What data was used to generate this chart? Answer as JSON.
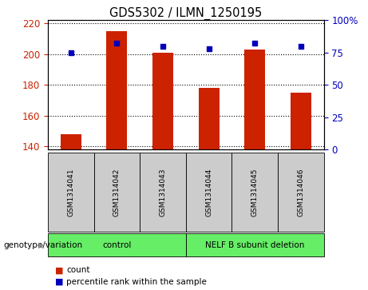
{
  "title": "GDS5302 / ILMN_1250195",
  "samples": [
    "GSM1314041",
    "GSM1314042",
    "GSM1314043",
    "GSM1314044",
    "GSM1314045",
    "GSM1314046"
  ],
  "counts": [
    148,
    215,
    201,
    178,
    203,
    175
  ],
  "percentiles": [
    75,
    82,
    80,
    78,
    82,
    80
  ],
  "group_spans": [
    {
      "label": "control",
      "start": 0,
      "end": 2
    },
    {
      "label": "NELF B subunit deletion",
      "start": 3,
      "end": 5
    }
  ],
  "bar_color": "#cc2200",
  "dot_color": "#0000bb",
  "ylim_left": [
    138,
    222
  ],
  "yticks_left": [
    140,
    160,
    180,
    200,
    220
  ],
  "ylim_right": [
    0,
    100
  ],
  "yticks_right": [
    0,
    25,
    50,
    75,
    100
  ],
  "left_tick_color": "#cc2200",
  "right_tick_color": "#0000bb",
  "bar_width": 0.45,
  "sample_box_color": "#cccccc",
  "green_color": "#66ee66",
  "legend_count_label": "count",
  "legend_percentile_label": "percentile rank within the sample",
  "genotype_label": "genotype/variation"
}
